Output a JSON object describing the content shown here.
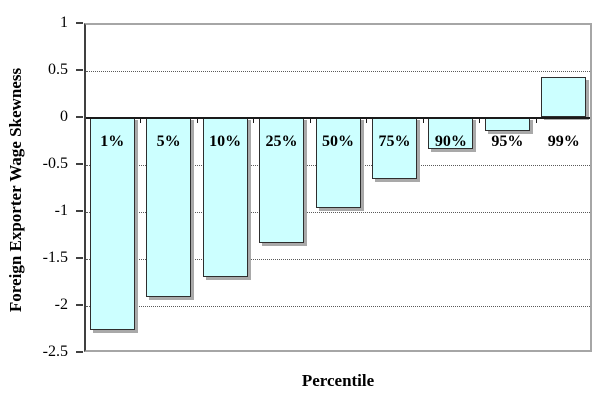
{
  "chart_data": {
    "type": "bar",
    "title": "",
    "xlabel": "Percentile",
    "ylabel": "Foreign Exporter Wage Skewness",
    "categories": [
      "1%",
      "5%",
      "10%",
      "25%",
      "50%",
      "75%",
      "90%",
      "95%",
      "99%"
    ],
    "values": [
      -2.27,
      -1.91,
      -1.7,
      -1.34,
      -0.97,
      -0.66,
      -0.34,
      -0.15,
      0.43
    ],
    "ylim": [
      -2.5,
      1
    ],
    "ytick_step": 0.5,
    "yticks": [
      1,
      0.5,
      0,
      -0.5,
      -1,
      -1.5,
      -2,
      -2.5
    ],
    "ytick_labels": [
      "1",
      "0.5",
      "0",
      "-0.5",
      "-1",
      "-1.5",
      "-2",
      "-2.5"
    ],
    "grid": "horizontal-dotted",
    "legend_position": "none",
    "bar_fill_color": "#ccffff",
    "bar_border_color": "#2e2e2e",
    "plot_border_color": "#a6a6a6",
    "axis_color": "#404040",
    "background_color": "#ffffff"
  }
}
